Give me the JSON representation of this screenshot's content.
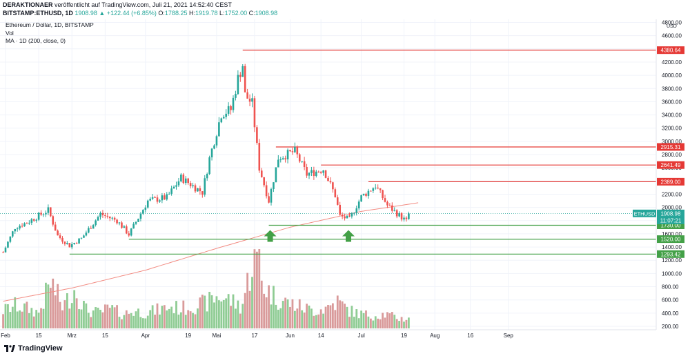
{
  "header": {
    "publisher": "DERAKTIONAER",
    "published_text": "veröffentlicht auf TradingView.com, Juli 21, 2021 14:52:40 CEST",
    "symbol_line": "BITSTAMP:ETHUSD, 1D",
    "close_value": "1908.98",
    "change_text": "▲ +122.44 (+6.85%)",
    "o_label": "O:",
    "o_value": "1788.25",
    "h_label": "H:",
    "h_value": "1919.78",
    "l_label": "L:",
    "l_value": "1752.00",
    "c_label": "C:",
    "c_value": "1908.98"
  },
  "legend": {
    "title": "Ethereum / Dollar, 1D, BITSTAMP",
    "vol": "Vol",
    "ma": "MA · 1D (200, close, 0)"
  },
  "footer": {
    "brand": "TradingView"
  },
  "colors": {
    "up": "#26a69a",
    "down": "#ef5350",
    "vol_up": "#8fcc94",
    "vol_down": "#d99a9a",
    "resistance": "#e53935",
    "support": "#43a047",
    "ma": "#f28b82",
    "price_tag": "#26a69a"
  },
  "chart_data": {
    "type": "candlestick",
    "title": "Ethereum / Dollar, 1D, BITSTAMP",
    "y_axis": {
      "unit": "USD",
      "ticks": [
        "200.00",
        "400.00",
        "600.00",
        "800.00",
        "1000.00",
        "1200.00",
        "1400.00",
        "1600.00",
        "1800.00",
        "2000.00",
        "2200.00",
        "2400.00",
        "2600.00",
        "2800.00",
        "3000.00",
        "3200.00",
        "3400.00",
        "3600.00",
        "3800.00",
        "4000.00",
        "4200.00",
        "4400.00",
        "4600.00",
        "4800.00"
      ],
      "range": [
        200,
        4800
      ]
    },
    "x_axis": {
      "ticks": [
        {
          "label": "Feb",
          "date": "2021-02-01"
        },
        {
          "label": "15",
          "date": "2021-02-15"
        },
        {
          "label": "Mrz",
          "date": "2021-03-01"
        },
        {
          "label": "15",
          "date": "2021-03-15"
        },
        {
          "label": "Apr",
          "date": "2021-04-01"
        },
        {
          "label": "19",
          "date": "2021-04-19"
        },
        {
          "label": "Mai",
          "date": "2021-05-01"
        },
        {
          "label": "17",
          "date": "2021-05-17"
        },
        {
          "label": "Jun",
          "date": "2021-06-01"
        },
        {
          "label": "14",
          "date": "2021-06-14"
        },
        {
          "label": "Jul",
          "date": "2021-07-01"
        },
        {
          "label": "19",
          "date": "2021-07-19"
        },
        {
          "label": "Aug",
          "date": "2021-08-01"
        },
        {
          "label": "16",
          "date": "2021-08-16"
        },
        {
          "label": "Sep",
          "date": "2021-09-01"
        }
      ]
    },
    "price_key_points": [
      {
        "date": "2021-01-31",
        "close": 1320
      },
      {
        "date": "2021-02-05",
        "close": 1700
      },
      {
        "date": "2021-02-10",
        "close": 1770
      },
      {
        "date": "2021-02-19",
        "close": 1960
      },
      {
        "date": "2021-02-23",
        "close": 1570
      },
      {
        "date": "2021-02-28",
        "close": 1420
      },
      {
        "date": "2021-03-05",
        "close": 1530
      },
      {
        "date": "2021-03-13",
        "close": 1900
      },
      {
        "date": "2021-03-20",
        "close": 1800
      },
      {
        "date": "2021-03-25",
        "close": 1590
      },
      {
        "date": "2021-04-02",
        "close": 2100
      },
      {
        "date": "2021-04-10",
        "close": 2150
      },
      {
        "date": "2021-04-16",
        "close": 2450
      },
      {
        "date": "2021-04-22",
        "close": 2300
      },
      {
        "date": "2021-04-25",
        "close": 2230
      },
      {
        "date": "2021-04-28",
        "close": 2740
      },
      {
        "date": "2021-05-03",
        "close": 3420
      },
      {
        "date": "2021-05-07",
        "close": 3480
      },
      {
        "date": "2021-05-10",
        "close": 3950
      },
      {
        "date": "2021-05-12",
        "close": 4160
      },
      {
        "date": "2021-05-13",
        "close": 3700
      },
      {
        "date": "2021-05-16",
        "close": 3570
      },
      {
        "date": "2021-05-19",
        "close": 2600
      },
      {
        "date": "2021-05-23",
        "close": 2100
      },
      {
        "date": "2021-05-27",
        "close": 2750
      },
      {
        "date": "2021-06-03",
        "close": 2850
      },
      {
        "date": "2021-06-08",
        "close": 2500
      },
      {
        "date": "2021-06-15",
        "close": 2580
      },
      {
        "date": "2021-06-20",
        "close": 2180
      },
      {
        "date": "2021-06-22",
        "close": 1870
      },
      {
        "date": "2021-06-26",
        "close": 1820
      },
      {
        "date": "2021-07-01",
        "close": 2160
      },
      {
        "date": "2021-07-07",
        "close": 2330
      },
      {
        "date": "2021-07-12",
        "close": 2030
      },
      {
        "date": "2021-07-17",
        "close": 1880
      },
      {
        "date": "2021-07-20",
        "close": 1790
      },
      {
        "date": "2021-07-21",
        "close": 1908.98
      }
    ],
    "ma200_key_points": [
      {
        "date": "2021-01-31",
        "value": 580
      },
      {
        "date": "2021-03-01",
        "value": 780
      },
      {
        "date": "2021-04-01",
        "value": 1050
      },
      {
        "date": "2021-05-01",
        "value": 1380
      },
      {
        "date": "2021-06-01",
        "value": 1700
      },
      {
        "date": "2021-07-01",
        "value": 1940
      },
      {
        "date": "2021-07-25",
        "value": 2070
      }
    ],
    "volume_relative_key_points": [
      0.25,
      0.32,
      0.28,
      0.22,
      0.65,
      0.3,
      0.55,
      0.25,
      0.22,
      0.28,
      0.2,
      0.24,
      0.22,
      0.26,
      0.3,
      0.28,
      0.32,
      0.35,
      0.45,
      0.4,
      0.3,
      1.0,
      0.55,
      0.42,
      0.35,
      0.3,
      0.25,
      0.28,
      0.38,
      0.25,
      0.2,
      0.18,
      0.2,
      0.15,
      0.12
    ],
    "horizontal_levels": [
      {
        "label": "4380.64",
        "value": 4380.64,
        "kind": "resistance",
        "start": "2021-05-12"
      },
      {
        "label": "2915.31",
        "value": 2915.31,
        "kind": "resistance",
        "start": "2021-05-26"
      },
      {
        "label": "2641.49",
        "value": 2641.49,
        "kind": "resistance",
        "start": "2021-06-14"
      },
      {
        "label": "2389.00",
        "value": 2389.0,
        "kind": "resistance",
        "start": "2021-07-04"
      },
      {
        "label": "1730.00",
        "value": 1730.0,
        "kind": "support",
        "start": "2021-05-23"
      },
      {
        "label": "1520.00",
        "value": 1520.0,
        "kind": "support",
        "start": "2021-03-25"
      },
      {
        "label": "1293.42",
        "value": 1293.42,
        "kind": "support",
        "start": "2021-02-28"
      }
    ],
    "current_price": {
      "symbol": "ETHUSD",
      "value": "1908.98",
      "countdown": "11:07:21",
      "level": 1908.98
    },
    "arrows": [
      {
        "date": "2021-05-23",
        "direction": "up"
      },
      {
        "date": "2021-06-25",
        "direction": "up"
      }
    ]
  }
}
